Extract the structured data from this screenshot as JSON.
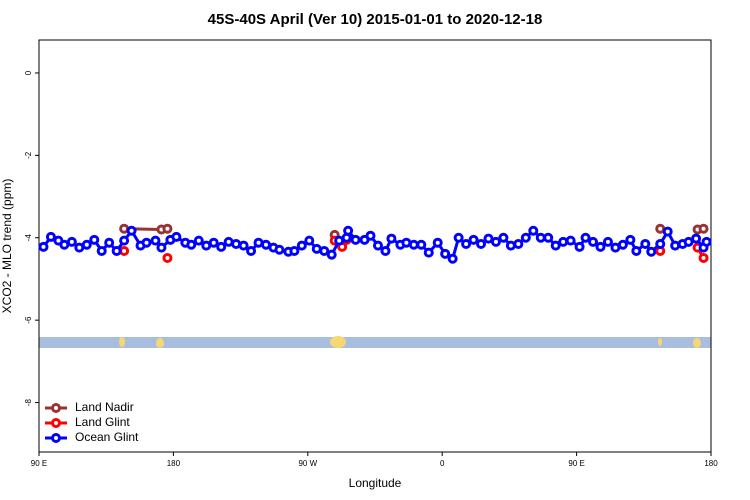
{
  "chart_data": {
    "type": "line",
    "title": "45S-40S April (Ver 10)   2015-01-01 to 2020-12-18",
    "x_label": "Longitude",
    "y_label": "XCO2 - MLO trend (ppm)",
    "xlim": [
      90,
      540
    ],
    "ylim": [
      -9.2,
      0.8
    ],
    "xticks": [
      {
        "value": 90,
        "label": "90 E"
      },
      {
        "value": 180,
        "label": "180"
      },
      {
        "value": 270,
        "label": "90 W"
      },
      {
        "value": 360,
        "label": "0"
      },
      {
        "value": 450,
        "label": "90 E"
      },
      {
        "value": 540,
        "label": "180"
      }
    ],
    "yticks": [
      0,
      -2,
      -4,
      -6,
      -8
    ],
    "legend": "bottom-left",
    "series": [
      {
        "name": "Land Nadir",
        "color": "#993333",
        "x": [
          147,
          172,
          176,
          230,
          288,
          400,
          506,
          520,
          531,
          535
        ],
        "values": [
          -3.78,
          -3.8,
          -3.78,
          null,
          -3.93,
          null,
          -3.78,
          null,
          -3.8,
          -3.78
        ]
      },
      {
        "name": "Land Glint",
        "color": "#ff0000",
        "x": [
          147,
          160,
          176,
          230,
          288,
          293,
          296,
          400,
          506,
          520,
          531,
          535
        ],
        "values": [
          -4.32,
          null,
          -4.49,
          null,
          -4.07,
          -4.22,
          -4.05,
          null,
          -4.32,
          null,
          -4.24,
          -4.49
        ]
      },
      {
        "name": "Ocean Glint",
        "color": "#0000ff",
        "x": [
          93,
          98,
          103,
          107,
          112,
          117,
          122,
          127,
          132,
          137,
          142,
          147,
          152,
          158,
          162,
          168,
          172,
          178,
          182,
          188,
          192,
          197,
          202,
          207,
          212,
          217,
          222,
          227,
          232,
          237,
          242,
          247,
          251,
          257,
          261,
          266,
          271,
          276,
          281,
          286,
          291,
          296,
          297,
          302,
          308,
          312,
          317,
          322,
          326,
          332,
          336,
          341,
          346,
          351,
          357,
          362,
          367,
          371,
          376,
          381,
          386,
          391,
          396,
          401,
          406,
          411,
          416,
          421,
          426,
          431,
          436,
          441,
          446,
          452,
          456,
          461,
          466,
          471,
          476,
          481,
          486,
          490,
          496,
          500,
          506,
          511,
          516,
          521,
          525,
          530,
          535,
          537
        ],
        "values": [
          -4.22,
          -3.98,
          -4.07,
          -4.17,
          -4.1,
          -4.24,
          -4.17,
          -4.05,
          -4.32,
          -4.12,
          -4.32,
          -4.07,
          -3.83,
          -4.19,
          -4.12,
          -4.07,
          -4.24,
          -4.05,
          -3.98,
          -4.12,
          -4.17,
          -4.07,
          -4.19,
          -4.12,
          -4.22,
          -4.1,
          -4.15,
          -4.19,
          -4.32,
          -4.12,
          -4.17,
          -4.24,
          -4.29,
          -4.34,
          -4.32,
          -4.19,
          -4.07,
          -4.27,
          -4.32,
          -4.41,
          -4.07,
          -4.0,
          -3.83,
          -4.05,
          -4.05,
          -3.95,
          -4.19,
          -4.32,
          -4.02,
          -4.17,
          -4.12,
          -4.17,
          -4.17,
          -4.36,
          -4.12,
          -4.39,
          -4.51,
          -4.0,
          -4.15,
          -4.05,
          -4.15,
          -4.02,
          -4.1,
          -4.0,
          -4.19,
          -4.15,
          -4.0,
          -3.83,
          -4.0,
          -4.0,
          -4.19,
          -4.1,
          -4.07,
          -4.22,
          -4.0,
          -4.1,
          -4.22,
          -4.1,
          -4.24,
          -4.17,
          -4.05,
          -4.32,
          -4.15,
          -4.34,
          -4.15,
          -3.85,
          -4.19,
          -4.15,
          -4.1,
          -4.02,
          -4.24,
          -4.1
        ]
      }
    ]
  }
}
